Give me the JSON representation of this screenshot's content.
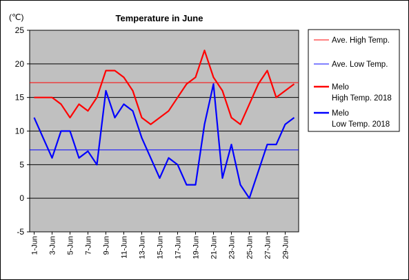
{
  "chart_data": {
    "type": "line",
    "title": "Temperature in June",
    "unit": "(℃)",
    "ylim": [
      -5,
      25
    ],
    "yticks": [
      "25",
      "20",
      "15",
      "10",
      "5",
      "0",
      "-5"
    ],
    "ytick_values": [
      25,
      20,
      15,
      10,
      5,
      0,
      -5
    ],
    "x": [
      1,
      2,
      3,
      4,
      5,
      6,
      7,
      8,
      9,
      10,
      11,
      12,
      13,
      14,
      15,
      16,
      17,
      18,
      19,
      20,
      21,
      22,
      23,
      24,
      25,
      26,
      27,
      28,
      29,
      30
    ],
    "xtick_labels": [
      "1-Jun",
      "3-Jun",
      "5-Jun",
      "7-Jun",
      "9-Jun",
      "11-Jun",
      "13-Jun",
      "15-Jun",
      "17-Jun",
      "19-Jun",
      "21-Jun",
      "23-Jun",
      "25-Jun",
      "27-Jun",
      "29-Jun"
    ],
    "xtick_days": [
      1,
      3,
      5,
      7,
      9,
      11,
      13,
      15,
      17,
      19,
      21,
      23,
      25,
      27,
      29
    ],
    "plot_background": "#c0c0c0",
    "grid": true,
    "legend_position": "right",
    "series": [
      {
        "name": "Ave. High Temp.",
        "color": "#ff0000",
        "constant": 17.2
      },
      {
        "name": "Ave. Low Temp.",
        "color": "#0000ff",
        "constant": 7.2
      },
      {
        "name_line1": "Melo",
        "name_line2": "High Temp. 2018",
        "color": "#ff0000",
        "values": [
          15,
          15,
          15,
          14,
          12,
          14,
          13,
          15,
          19,
          19,
          18,
          16,
          12,
          11,
          12,
          13,
          15,
          17,
          18,
          22,
          18,
          16,
          12,
          11,
          14,
          17,
          19,
          15,
          16,
          17
        ]
      },
      {
        "name_line1": "Melo",
        "name_line2": "Low Temp. 2018",
        "color": "#0000ff",
        "values": [
          12,
          9,
          6,
          10,
          10,
          6,
          7,
          5,
          16,
          12,
          14,
          13,
          9,
          6,
          3,
          6,
          5,
          2,
          2,
          11,
          17,
          3,
          8,
          2,
          0,
          4,
          8,
          8,
          11,
          12
        ]
      }
    ]
  }
}
